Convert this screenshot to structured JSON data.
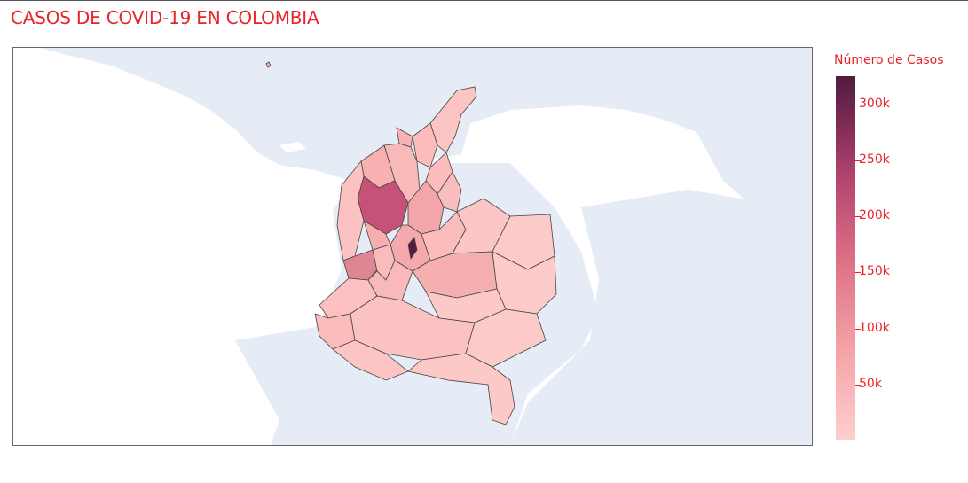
{
  "title": "CASOS DE COVID-19 EN COLOMBIA",
  "colorbar": {
    "title": "Número de Casos",
    "min": 0,
    "max": 325000,
    "ticks": [
      {
        "value": 300000,
        "label": "300k"
      },
      {
        "value": 250000,
        "label": "250k"
      },
      {
        "value": 200000,
        "label": "200k"
      },
      {
        "value": 150000,
        "label": "150k"
      },
      {
        "value": 100000,
        "label": "100k"
      },
      {
        "value": 50000,
        "label": "50k"
      }
    ],
    "colors": {
      "low": "#fdcfcf",
      "mid": "#dc6f85",
      "high": "#531c3f"
    }
  },
  "map": {
    "land_color": "#ffffff",
    "ocean_color": "#e5ecf6",
    "border_color": "#444444",
    "regions": [
      {
        "id": "antioquia",
        "cases": 160000
      },
      {
        "id": "bogota",
        "cases": 320000
      },
      {
        "id": "valle-del-cauca",
        "cases": 110000
      },
      {
        "id": "atlantico",
        "cases": 90000
      },
      {
        "id": "santander",
        "cases": 60000
      },
      {
        "id": "cundinamarca",
        "cases": 50000
      },
      {
        "id": "meta",
        "cases": 40000
      },
      {
        "id": "cordoba",
        "cases": 50000
      },
      {
        "id": "la-guajira",
        "cases": 30000
      },
      {
        "id": "vichada",
        "cases": 5000
      },
      {
        "id": "guainia",
        "cases": 5000
      },
      {
        "id": "amazonas",
        "cases": 5000
      }
    ]
  }
}
